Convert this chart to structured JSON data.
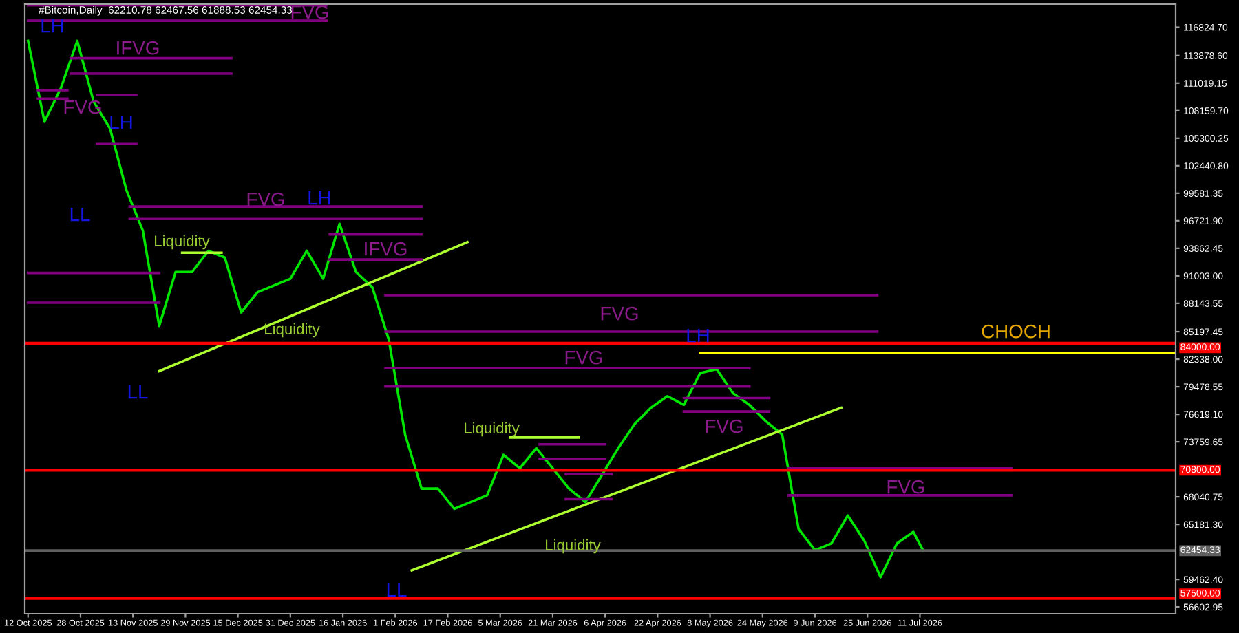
{
  "chart_data": {
    "type": "line",
    "title": "#Bitcoin,Daily  62210.78 62467.56 61888.53 62454.33",
    "xlim": [
      "2025-10-11",
      "2026-09-27"
    ],
    "ylim": [
      55898,
      119222
    ],
    "xticks": [
      {
        "value": "2025-10-12",
        "label": "12 Oct 2025"
      },
      {
        "value": "2025-10-28",
        "label": "28 Oct 2025"
      },
      {
        "value": "2025-11-13",
        "label": "13 Nov 2025"
      },
      {
        "value": "2025-11-29",
        "label": "29 Nov 2025"
      },
      {
        "value": "2025-12-15",
        "label": "15 Dec 2025"
      },
      {
        "value": "2025-12-31",
        "label": "31 Dec 2025"
      },
      {
        "value": "2026-01-16",
        "label": "16 Jan 2026"
      },
      {
        "value": "2026-02-01",
        "label": "1 Feb 2026"
      },
      {
        "value": "2026-02-17",
        "label": "17 Feb 2026"
      },
      {
        "value": "2026-03-05",
        "label": "5 Mar 2026"
      },
      {
        "value": "2026-03-21",
        "label": "21 Mar 2026"
      },
      {
        "value": "2026-04-06",
        "label": "6 Apr 2026"
      },
      {
        "value": "2026-04-22",
        "label": "22 Apr 2026"
      },
      {
        "value": "2026-05-08",
        "label": "8 May 2026"
      },
      {
        "value": "2026-05-24",
        "label": "24 May 2026"
      },
      {
        "value": "2026-06-09",
        "label": "9 Jun 2026"
      },
      {
        "value": "2026-06-25",
        "label": "25 Jun 2026"
      },
      {
        "value": "2026-07-11",
        "label": "11 Jul 2026"
      }
    ],
    "yticks": [
      {
        "value": 56602.95,
        "label": "56602.95"
      },
      {
        "value": 59462.4,
        "label": "59462.40"
      },
      {
        "value": 65181.3,
        "label": "65181.30"
      },
      {
        "value": 68040.75,
        "label": "68040.75"
      },
      {
        "value": 73759.65,
        "label": "73759.65"
      },
      {
        "value": 76619.1,
        "label": "76619.10"
      },
      {
        "value": 79478.55,
        "label": "79478.55"
      },
      {
        "value": 82338.0,
        "label": "82338.00"
      },
      {
        "value": 85197.45,
        "label": "85197.45"
      },
      {
        "value": 88143.55,
        "label": "88143.55"
      },
      {
        "value": 91003.0,
        "label": "91003.00"
      },
      {
        "value": 93862.45,
        "label": "93862.45"
      },
      {
        "value": 96721.9,
        "label": "96721.90"
      },
      {
        "value": 99581.35,
        "label": "99581.35"
      },
      {
        "value": 102440.8,
        "label": "102440.80"
      },
      {
        "value": 105300.25,
        "label": "105300.25"
      },
      {
        "value": 108159.7,
        "label": "108159.70"
      },
      {
        "value": 111019.15,
        "label": "111019.15"
      },
      {
        "value": 113878.6,
        "label": "113878.60"
      },
      {
        "value": 116824.7,
        "label": "116824.70"
      }
    ],
    "grid": false,
    "legend": false,
    "marker": "none",
    "line_style": "solid",
    "ref_lines": [
      {
        "axis": "y",
        "value": 84000,
        "label": "84000.00",
        "color": "#ff0000"
      },
      {
        "axis": "y",
        "value": 70800,
        "label": "70800.00",
        "color": "#ff0000"
      },
      {
        "axis": "y",
        "value": 57500,
        "label": "57500.00",
        "color": "#ff0000"
      },
      {
        "axis": "y",
        "value": 62454.33,
        "label": "62454.33",
        "color": "#606060"
      }
    ],
    "series": [
      {
        "color": "#00e600",
        "x": [
          "2025-10-12",
          "2025-10-17",
          "2025-10-22",
          "2025-10-27",
          "2025-11-01",
          "2025-11-06",
          "2025-11-11",
          "2025-11-16",
          "2025-11-21",
          "2025-11-26",
          "2025-12-01",
          "2025-12-06",
          "2025-12-11",
          "2025-12-16",
          "2025-12-21",
          "2025-12-26",
          "2025-12-31",
          "2026-01-05",
          "2026-01-10",
          "2026-01-15",
          "2026-01-20",
          "2026-01-25",
          "2026-01-30",
          "2026-02-04",
          "2026-02-09",
          "2026-02-14",
          "2026-02-19",
          "2026-02-24",
          "2026-03-01",
          "2026-03-06",
          "2026-03-11",
          "2026-03-16",
          "2026-03-21",
          "2026-03-26",
          "2026-03-31",
          "2026-04-05",
          "2026-04-10",
          "2026-04-15",
          "2026-04-20",
          "2026-04-25",
          "2026-04-30",
          "2026-05-05",
          "2026-05-10",
          "2026-05-15",
          "2026-05-20",
          "2026-05-25",
          "2026-05-30",
          "2026-06-04",
          "2026-06-09",
          "2026-06-14",
          "2026-06-19",
          "2026-06-24",
          "2026-06-29",
          "2026-07-04",
          "2026-07-09",
          "2026-07-12"
        ],
        "values": [
          115400,
          107000,
          110500,
          115400,
          109100,
          106300,
          99900,
          95700,
          85800,
          91400,
          91400,
          93600,
          92900,
          87200,
          89300,
          90000,
          90700,
          93600,
          90700,
          96400,
          91400,
          89800,
          84400,
          74500,
          68900,
          68900,
          66800,
          67500,
          68200,
          72400,
          71000,
          73100,
          71000,
          68900,
          67500,
          70300,
          73100,
          75600,
          77300,
          78500,
          77600,
          80900,
          81300,
          78800,
          77600,
          75900,
          74500,
          64700,
          62500,
          63200,
          66100,
          63500,
          59700,
          63200,
          64400,
          62454.33
        ]
      },
      {
        "color": "#adff2f",
        "x": [
          "2025-11-21",
          "2026-02-23"
        ],
        "values": [
          81100,
          94500
        ]
      },
      {
        "color": "#adff2f",
        "x": [
          "2026-02-06",
          "2026-06-17"
        ],
        "values": [
          60400,
          77300
        ]
      },
      {
        "color": "#adff2f",
        "x": [
          "2025-11-28",
          "2025-12-10"
        ],
        "values": [
          93400,
          93400
        ]
      },
      {
        "color": "#adff2f",
        "x": [
          "2026-03-08",
          "2026-03-29"
        ],
        "values": [
          74200,
          74200
        ]
      },
      {
        "color": "#ffff00",
        "x": [
          "2026-05-05",
          "2026-09-27"
        ],
        "values": [
          83000,
          83000
        ]
      },
      {
        "color": "#800080",
        "x": [
          "2025-10-12",
          "2026-01-11"
        ],
        "values": [
          119100,
          119100
        ]
      },
      {
        "color": "#800080",
        "x": [
          "2025-10-12",
          "2026-01-11"
        ],
        "values": [
          117500,
          117500
        ]
      },
      {
        "color": "#800080",
        "x": [
          "2025-10-25",
          "2025-12-13"
        ],
        "values": [
          113600,
          113600
        ]
      },
      {
        "color": "#800080",
        "x": [
          "2025-10-25",
          "2025-12-13"
        ],
        "values": [
          112000,
          112000
        ]
      },
      {
        "color": "#800080",
        "x": [
          "2025-10-15",
          "2025-10-24"
        ],
        "values": [
          110300,
          110300
        ]
      },
      {
        "color": "#800080",
        "x": [
          "2025-10-15",
          "2025-10-24"
        ],
        "values": [
          109400,
          109400
        ]
      },
      {
        "color": "#800080",
        "x": [
          "2025-11-02",
          "2025-11-14"
        ],
        "values": [
          109800,
          109800
        ]
      },
      {
        "color": "#800080",
        "x": [
          "2025-11-02",
          "2025-11-14"
        ],
        "values": [
          104700,
          104700
        ]
      },
      {
        "color": "#800080",
        "x": [
          "2025-11-12",
          "2026-02-09"
        ],
        "values": [
          98200,
          98200
        ]
      },
      {
        "color": "#800080",
        "x": [
          "2025-11-12",
          "2026-02-09"
        ],
        "values": [
          96900,
          96900
        ]
      },
      {
        "color": "#800080",
        "x": [
          "2026-01-12",
          "2026-02-09"
        ],
        "values": [
          95300,
          95300
        ]
      },
      {
        "color": "#800080",
        "x": [
          "2026-01-12",
          "2026-02-09"
        ],
        "values": [
          92700,
          92700
        ]
      },
      {
        "color": "#800080",
        "x": [
          "2025-10-12",
          "2025-11-21"
        ],
        "values": [
          91300,
          91300
        ]
      },
      {
        "color": "#800080",
        "x": [
          "2025-10-12",
          "2025-11-21"
        ],
        "values": [
          88200,
          88200
        ]
      },
      {
        "color": "#800080",
        "x": [
          "2026-01-29",
          "2026-06-28"
        ],
        "values": [
          89000,
          89000
        ]
      },
      {
        "color": "#800080",
        "x": [
          "2026-01-29",
          "2026-06-28"
        ],
        "values": [
          85200,
          85200
        ]
      },
      {
        "color": "#800080",
        "x": [
          "2026-01-29",
          "2026-05-20"
        ],
        "values": [
          81400,
          81400
        ]
      },
      {
        "color": "#800080",
        "x": [
          "2026-01-29",
          "2026-05-20"
        ],
        "values": [
          79500,
          79500
        ]
      },
      {
        "color": "#800080",
        "x": [
          "2026-03-17",
          "2026-04-06"
        ],
        "values": [
          73500,
          73500
        ]
      },
      {
        "color": "#800080",
        "x": [
          "2026-03-17",
          "2026-04-06"
        ],
        "values": [
          72000,
          72000
        ]
      },
      {
        "color": "#800080",
        "x": [
          "2026-03-25",
          "2026-04-08"
        ],
        "values": [
          70400,
          70400
        ]
      },
      {
        "color": "#800080",
        "x": [
          "2026-03-25",
          "2026-04-08"
        ],
        "values": [
          67800,
          67800
        ]
      },
      {
        "color": "#800080",
        "x": [
          "2026-04-30",
          "2026-05-26"
        ],
        "values": [
          78300,
          78300
        ]
      },
      {
        "color": "#800080",
        "x": [
          "2026-04-30",
          "2026-05-26"
        ],
        "values": [
          76900,
          76900
        ]
      },
      {
        "color": "#800080",
        "x": [
          "2026-06-01",
          "2026-08-08"
        ],
        "values": [
          71000,
          71000
        ]
      },
      {
        "color": "#800080",
        "x": [
          "2026-06-01",
          "2026-08-08"
        ],
        "values": [
          68200,
          68200
        ]
      }
    ],
    "annotations": [
      "FVG",
      "IFVG",
      "FVG",
      "FVG",
      "IFVG",
      "FVG",
      "FVG",
      "FVG",
      "FVG",
      "LH",
      "LH",
      "LL",
      "LH",
      "LL",
      "LH",
      "LL",
      "Liquidity",
      "Liquidity",
      "Liquidity",
      "Liquidity",
      "CHOCH"
    ]
  }
}
